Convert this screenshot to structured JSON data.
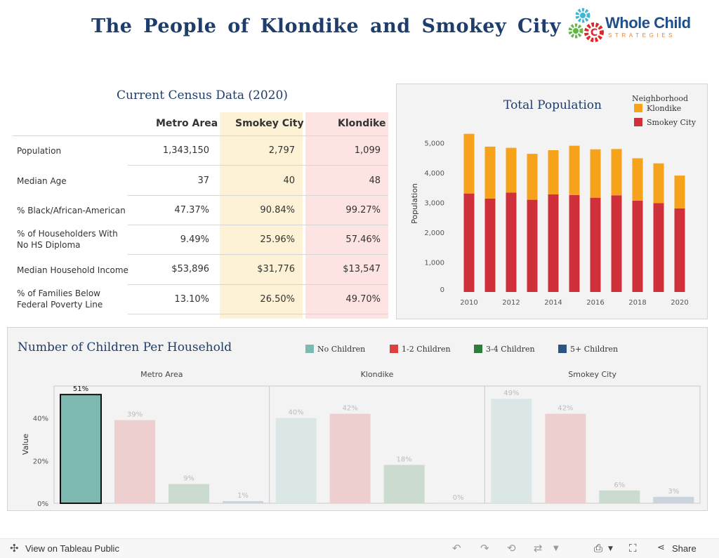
{
  "page": {
    "title": "The People of Klondike and Smokey City",
    "logo": {
      "name": "Whole Child",
      "tagline": "STRATEGIES"
    }
  },
  "census": {
    "title": "Current Census Data (2020)",
    "columns": [
      "Metro Area",
      "Smokey City",
      "Klondike"
    ],
    "rows": [
      {
        "label": "Population",
        "values": [
          "1,343,150",
          "2,797",
          "1,099"
        ]
      },
      {
        "label": "Median Age",
        "values": [
          "37",
          "40",
          "48"
        ]
      },
      {
        "label": "% Black/African-American",
        "values": [
          "47.37%",
          "90.84%",
          "99.27%"
        ]
      },
      {
        "label": "% of Householders With No HS Diploma",
        "values": [
          "9.49%",
          "25.96%",
          "57.46%"
        ]
      },
      {
        "label": "Median Household Income",
        "values": [
          "$53,896",
          "$31,776",
          "$13,547"
        ]
      },
      {
        "label": "% of Families Below Federal Poverty Line",
        "values": [
          "13.10%",
          "26.50%",
          "49.70%"
        ]
      }
    ],
    "colors": {
      "smokey_band": "#fdf1d6",
      "klondike_band": "#fde3e1"
    }
  },
  "chart_data": [
    {
      "type": "bar",
      "stacked": true,
      "title": "Total Population",
      "ylabel": "Population",
      "ylim": [
        0,
        5000
      ],
      "yticks": [
        0,
        1000,
        2000,
        3000,
        4000,
        5000
      ],
      "ytick_labels": [
        "0",
        "1,000",
        "2,000",
        "3,000",
        "4,000",
        "5,000"
      ],
      "x": [
        2010,
        2011,
        2012,
        2013,
        2014,
        2015,
        2016,
        2017,
        2018,
        2019,
        2020
      ],
      "xtick_labels": [
        "2010",
        "2012",
        "2014",
        "2016",
        "2018",
        "2020"
      ],
      "legend_title": "Neighborhood",
      "legend_position": "top-right",
      "series": [
        {
          "name": "Smokey City",
          "color": "#d0303a",
          "values": [
            3300,
            3130,
            3330,
            3090,
            3270,
            3250,
            3160,
            3240,
            3060,
            2980,
            2800
          ]
        },
        {
          "name": "Klondike",
          "color": "#f7a21b",
          "values": [
            2000,
            1740,
            1500,
            1540,
            1480,
            1650,
            1620,
            1550,
            1420,
            1330,
            1100
          ]
        }
      ]
    },
    {
      "type": "bar",
      "title": "Number of Children Per Household",
      "ylabel": "Value",
      "ylim": [
        0,
        55
      ],
      "yticks": [
        0,
        20,
        40
      ],
      "ytick_labels": [
        "0%",
        "20%",
        "40%"
      ],
      "legend_position": "top",
      "categories": [
        "No Children",
        "1-2 Children",
        "3-4 Children",
        "5+ Children"
      ],
      "colors": [
        "#7db9b1",
        "#d9403f",
        "#2e7d3d",
        "#2c5482"
      ],
      "panels": [
        {
          "name": "Metro Area",
          "values": [
            51,
            39,
            9,
            1
          ],
          "labels": [
            "51%",
            "39%",
            "9%",
            "1%"
          ],
          "highlight": 0
        },
        {
          "name": "Klondike",
          "values": [
            40,
            42,
            18,
            0
          ],
          "labels": [
            "40%",
            "42%",
            "18%",
            "0%"
          ],
          "highlight": -1
        },
        {
          "name": "Smokey City",
          "values": [
            49,
            42,
            6,
            3
          ],
          "labels": [
            "49%",
            "42%",
            "6%",
            "3%"
          ],
          "highlight": -1
        }
      ]
    }
  ],
  "footer": {
    "view_link": "View on Tableau Public",
    "share_label": "Share"
  }
}
